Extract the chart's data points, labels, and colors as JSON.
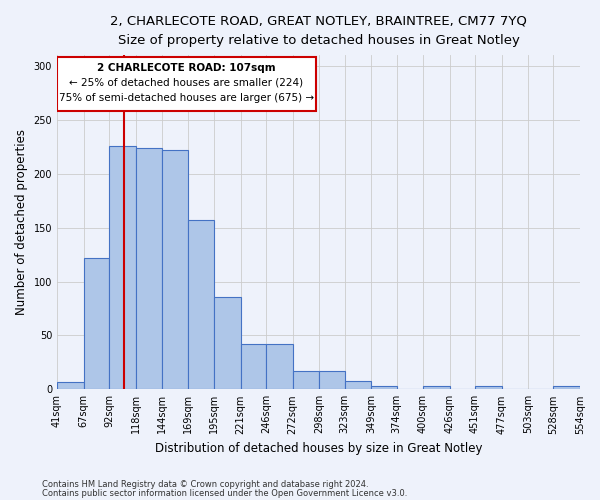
{
  "title1": "2, CHARLECOTE ROAD, GREAT NOTLEY, BRAINTREE, CM77 7YQ",
  "title2": "Size of property relative to detached houses in Great Notley",
  "xlabel": "Distribution of detached houses by size in Great Notley",
  "ylabel": "Number of detached properties",
  "footnote1": "Contains HM Land Registry data © Crown copyright and database right 2024.",
  "footnote2": "Contains public sector information licensed under the Open Government Licence v3.0.",
  "annotation_line1": "2 CHARLECOTE ROAD: 107sqm",
  "annotation_line2": "← 25% of detached houses are smaller (224)",
  "annotation_line3": "75% of semi-detached houses are larger (675) →",
  "bar_edges": [
    41,
    67,
    92,
    118,
    144,
    169,
    195,
    221,
    246,
    272,
    298,
    323,
    349,
    374,
    400,
    426,
    451,
    477,
    503,
    528,
    554
  ],
  "bar_heights": [
    7,
    122,
    226,
    224,
    222,
    157,
    86,
    42,
    42,
    17,
    17,
    8,
    3,
    0,
    3,
    0,
    3,
    0,
    0,
    3,
    0
  ],
  "bar_color": "#aec6e8",
  "bar_edge_color": "#4472c4",
  "grid_color": "#cccccc",
  "vline_x": 107,
  "vline_color": "#cc0000",
  "box_color": "#cc0000",
  "ylim": [
    0,
    310
  ],
  "bg_color": "#eef2fb",
  "title1_fontsize": 9.5,
  "title2_fontsize": 8.5,
  "ylabel_fontsize": 8.5,
  "xlabel_fontsize": 8.5,
  "tick_fontsize": 7,
  "footnote_fontsize": 6
}
